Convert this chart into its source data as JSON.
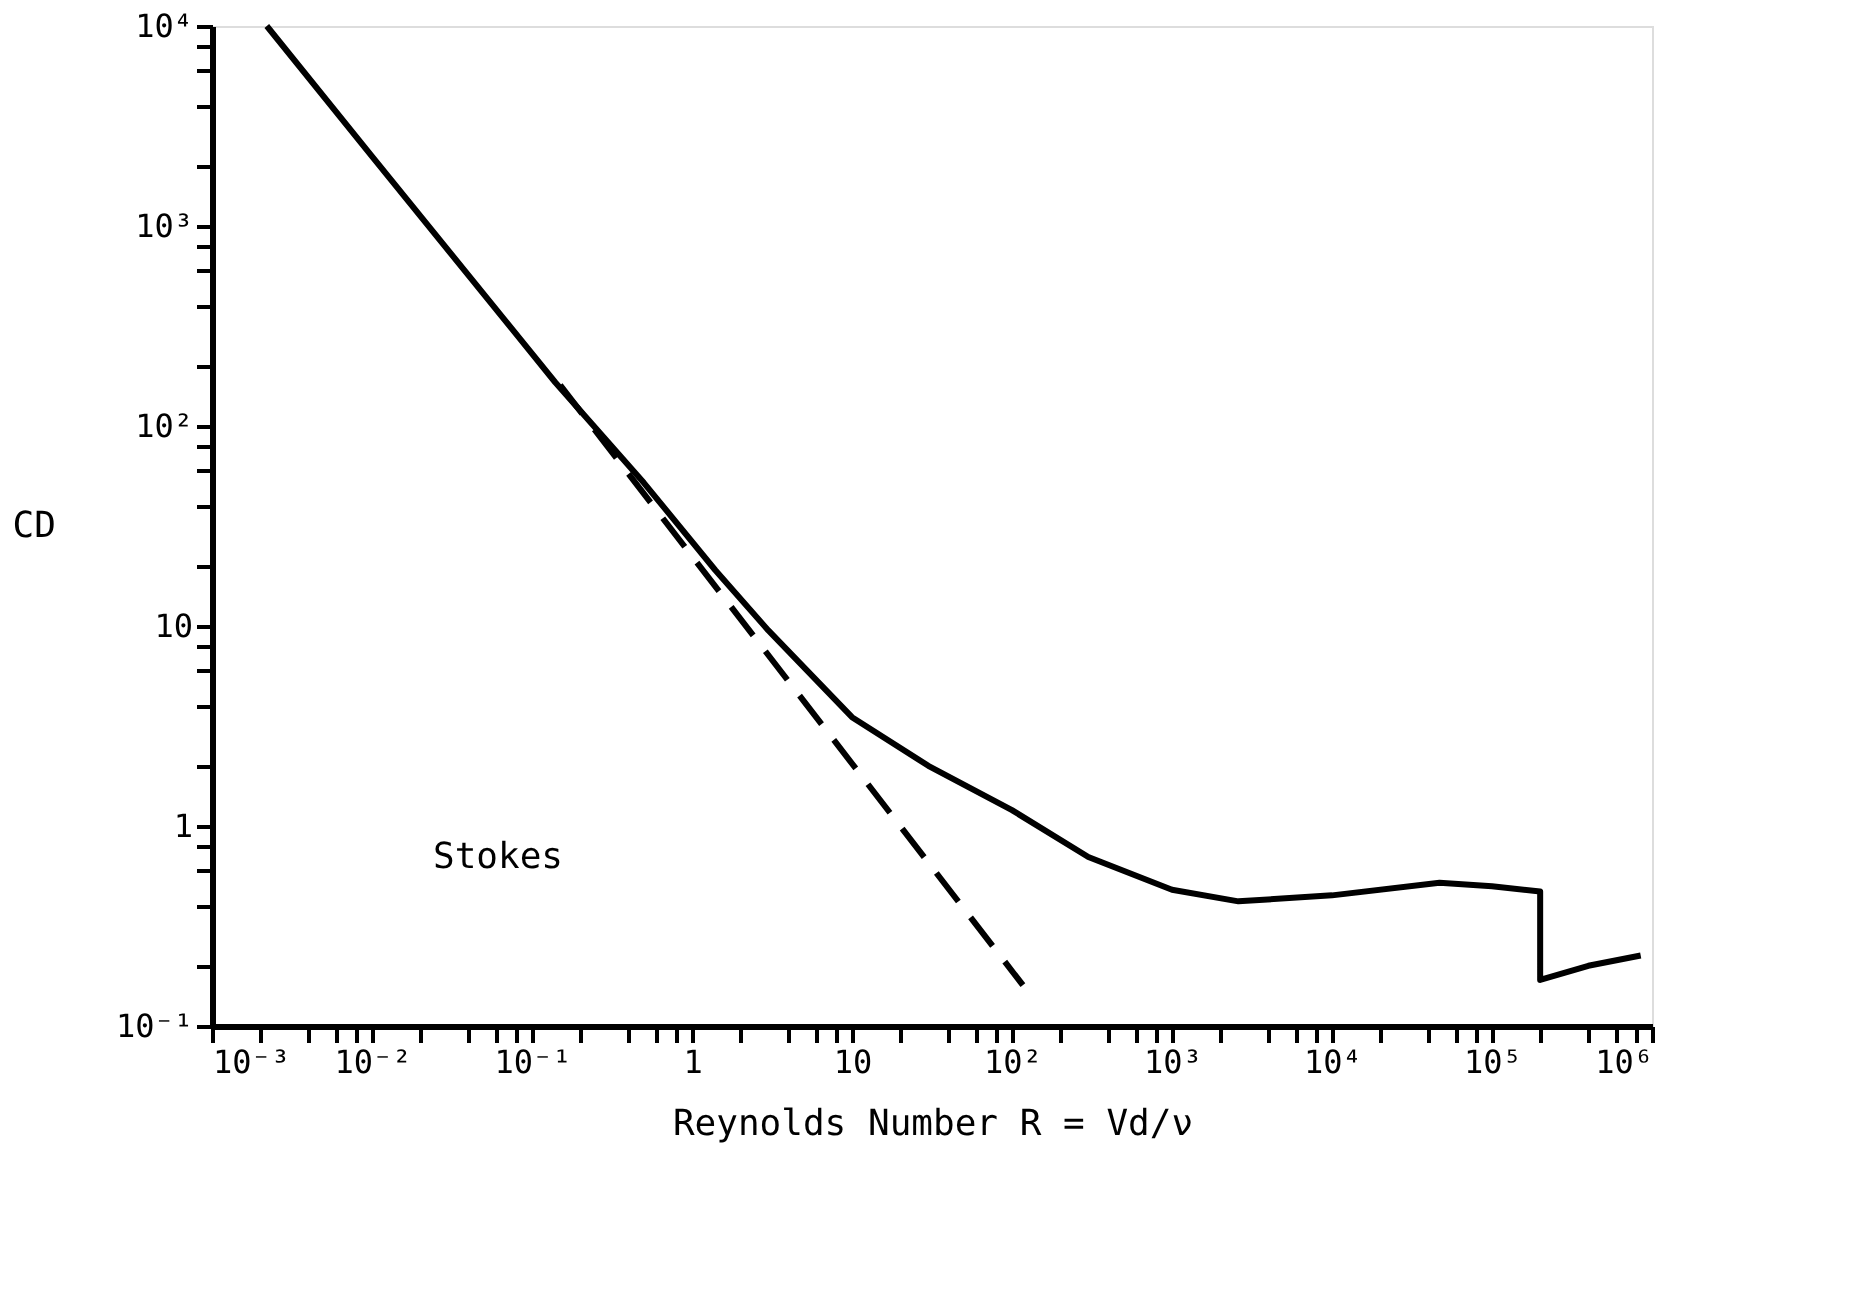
{
  "chart_data": {
    "type": "line",
    "xlabel": "Reynolds Number R = Vd/ν",
    "ylabel": "CD",
    "log": "xy",
    "grid": false,
    "marker": "none",
    "xlim": [
      0.001,
      1000000
    ],
    "ylim": [
      0.1,
      10000
    ],
    "xticks": [
      {
        "value": 0.001,
        "label": "10⁻³"
      },
      {
        "value": 0.002,
        "label": null
      },
      {
        "value": 0.004,
        "label": null
      },
      {
        "value": 0.006,
        "label": null
      },
      {
        "value": 0.008,
        "label": null
      },
      {
        "value": 0.01,
        "label": "10⁻²"
      },
      {
        "value": 0.02,
        "label": null
      },
      {
        "value": 0.04,
        "label": null
      },
      {
        "value": 0.06,
        "label": null
      },
      {
        "value": 0.08,
        "label": null
      },
      {
        "value": 0.1,
        "label": "10⁻¹"
      },
      {
        "value": 0.2,
        "label": null
      },
      {
        "value": 0.4,
        "label": null
      },
      {
        "value": 0.6,
        "label": null
      },
      {
        "value": 0.8,
        "label": null
      },
      1,
      {
        "value": 2,
        "label": null
      },
      {
        "value": 4,
        "label": null
      },
      {
        "value": 6,
        "label": null
      },
      {
        "value": 8,
        "label": null
      },
      10,
      {
        "value": 20,
        "label": null
      },
      {
        "value": 40,
        "label": null
      },
      {
        "value": 60,
        "label": null
      },
      {
        "value": 80,
        "label": null
      },
      {
        "value": 100,
        "label": "10²"
      },
      {
        "value": 200,
        "label": null
      },
      {
        "value": 400,
        "label": null
      },
      {
        "value": 600,
        "label": null
      },
      {
        "value": 800,
        "label": null
      },
      {
        "value": 1000,
        "label": "10³"
      },
      {
        "value": 2000,
        "label": null
      },
      {
        "value": 4000,
        "label": null
      },
      {
        "value": 6000,
        "label": null
      },
      {
        "value": 8000,
        "label": null
      },
      {
        "value": 10000,
        "label": "10⁴"
      },
      {
        "value": 20000,
        "label": null
      },
      {
        "value": 40000,
        "label": null
      },
      {
        "value": 60000,
        "label": null
      },
      {
        "value": 80000,
        "label": null
      },
      {
        "value": 100000,
        "label": "10⁵"
      },
      {
        "value": 200000,
        "label": null
      },
      {
        "value": 400000,
        "label": null
      },
      {
        "value": 600000,
        "label": null
      },
      {
        "value": 800000,
        "label": null
      },
      {
        "value": 1000000,
        "label": "10⁶"
      }
    ],
    "yticks": [
      {
        "value": 0.1,
        "label": "10⁻¹"
      },
      {
        "value": 0.2,
        "label": null
      },
      {
        "value": 0.4,
        "label": null
      },
      {
        "value": 0.6,
        "label": null
      },
      {
        "value": 0.8,
        "label": null
      },
      1,
      {
        "value": 2,
        "label": null
      },
      {
        "value": 4,
        "label": null
      },
      {
        "value": 6,
        "label": null
      },
      {
        "value": 8,
        "label": null
      },
      10,
      {
        "value": 20,
        "label": null
      },
      {
        "value": 40,
        "label": null
      },
      {
        "value": 60,
        "label": null
      },
      {
        "value": 80,
        "label": null
      },
      {
        "value": 100,
        "label": "10²"
      },
      {
        "value": 200,
        "label": null
      },
      {
        "value": 400,
        "label": null
      },
      {
        "value": 600,
        "label": null
      },
      {
        "value": 800,
        "label": null
      },
      {
        "value": 1000,
        "label": "10³"
      },
      {
        "value": 2000,
        "label": null
      },
      {
        "value": 4000,
        "label": null
      },
      {
        "value": 6000,
        "label": null
      },
      {
        "value": 8000,
        "label": null
      },
      {
        "value": 10000,
        "label": "10⁴"
      }
    ],
    "series": [
      {
        "color": "#000000",
        "line_style": "solid",
        "x": [
          0.0022,
          0.01,
          0.14,
          0.5,
          1.4,
          3,
          10,
          30,
          100,
          300,
          1000,
          2600,
          10000,
          47000,
          100000,
          200000,
          200000,
          400000,
          850000
        ],
        "values": [
          10000,
          2230,
          165,
          52,
          19,
          9.5,
          3.5,
          2.0,
          1.2,
          0.7,
          0.48,
          0.42,
          0.45,
          0.52,
          0.5,
          0.47,
          0.17,
          0.2,
          0.225
        ]
      },
      {
        "color": "#000000",
        "line_style": "dashed",
        "x": [
          0.15,
          117
        ],
        "values": [
          160,
          0.16
        ]
      }
    ],
    "annotations": [
      "Stokes"
    ]
  }
}
